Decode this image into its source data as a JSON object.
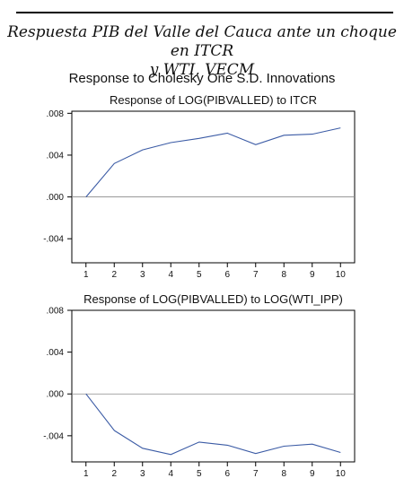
{
  "document": {
    "title_line1": "Respuesta PIB del Valle del Cauca ante un choque en ITCR",
    "title_line2": "y WTI, VECM"
  },
  "figure_title": "Response to Cholesky One S.D. Innovations",
  "colors": {
    "line": "#3b5ba5",
    "zero_line": "#8a8a8a",
    "axis": "#000000"
  },
  "chart_data": [
    {
      "type": "line",
      "title": "Response of LOG(PIBVALLED) to ITCR",
      "x": [
        1,
        2,
        3,
        4,
        5,
        6,
        7,
        8,
        9,
        10
      ],
      "y": [
        0.0,
        0.0032,
        0.0045,
        0.0052,
        0.0056,
        0.0061,
        0.005,
        0.0059,
        0.006,
        0.0066
      ],
      "xlabel": "",
      "ylabel": "",
      "xlim": [
        0.5,
        10.5
      ],
      "ylim": [
        -0.0063,
        0.0082
      ],
      "yticks": [
        0.008,
        0.004,
        0.0,
        -0.004
      ],
      "ytick_labels": [
        ".008",
        ".004",
        ".000",
        "-.004"
      ],
      "xtick_labels": [
        "1",
        "2",
        "3",
        "4",
        "5",
        "6",
        "7",
        "8",
        "9",
        "10"
      ],
      "zero_line": true,
      "grid": false
    },
    {
      "type": "line",
      "title": "Response of LOG(PIBVALLED) to LOG(WTI_IPP)",
      "x": [
        1,
        2,
        3,
        4,
        5,
        6,
        7,
        8,
        9,
        10
      ],
      "y": [
        0.0,
        -0.0035,
        -0.0052,
        -0.0058,
        -0.0046,
        -0.0049,
        -0.0057,
        -0.005,
        -0.0048,
        -0.0056
      ],
      "xlabel": "",
      "ylabel": "",
      "xlim": [
        0.5,
        10.5
      ],
      "ylim": [
        -0.0065,
        0.008
      ],
      "yticks": [
        0.008,
        0.004,
        0.0,
        -0.004
      ],
      "ytick_labels": [
        ".008",
        ".004",
        ".000",
        "-.004"
      ],
      "xtick_labels": [
        "1",
        "2",
        "3",
        "4",
        "5",
        "6",
        "7",
        "8",
        "9",
        "10"
      ],
      "zero_line": true,
      "grid": false
    }
  ]
}
